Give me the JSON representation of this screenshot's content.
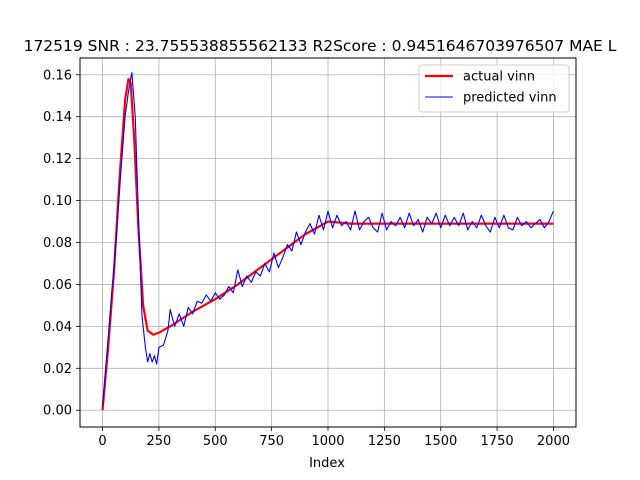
{
  "chart_data": {
    "type": "line",
    "title": "172519  SNR : 23.755538855562133 R2Score : 0.9451646703976507 MAE L",
    "xlabel": "Index",
    "ylabel": "",
    "xlim": [
      -100,
      2100
    ],
    "ylim": [
      -0.008,
      0.168
    ],
    "xticks": [
      0,
      250,
      500,
      750,
      1000,
      1250,
      1500,
      1750,
      2000
    ],
    "yticks": [
      0.0,
      0.02,
      0.04,
      0.06,
      0.08,
      0.1,
      0.12,
      0.14,
      0.16
    ],
    "ytick_labels": [
      "0.00",
      "0.02",
      "0.04",
      "0.06",
      "0.08",
      "0.10",
      "0.12",
      "0.14",
      "0.16"
    ],
    "grid": true,
    "legend_position": "top-right",
    "series": [
      {
        "name": "actual vinn",
        "color": "#ff0000",
        "x": [
          0,
          25,
          50,
          75,
          100,
          115,
          125,
          140,
          160,
          180,
          200,
          225,
          250,
          300,
          400,
          500,
          600,
          700,
          800,
          900,
          1000,
          1100,
          1200,
          1300,
          1400,
          1500,
          1600,
          1700,
          1800,
          1900,
          2000
        ],
        "y": [
          0.0,
          0.03,
          0.065,
          0.11,
          0.148,
          0.158,
          0.156,
          0.13,
          0.085,
          0.05,
          0.038,
          0.036,
          0.037,
          0.04,
          0.047,
          0.053,
          0.06,
          0.068,
          0.076,
          0.084,
          0.09,
          0.089,
          0.089,
          0.089,
          0.089,
          0.089,
          0.089,
          0.089,
          0.089,
          0.089,
          0.089
        ]
      },
      {
        "name": "predicted vinn",
        "color": "#0000ff",
        "x": [
          0,
          20,
          40,
          60,
          80,
          100,
          115,
          130,
          145,
          160,
          175,
          190,
          200,
          210,
          220,
          230,
          240,
          250,
          270,
          290,
          300,
          320,
          340,
          360,
          380,
          400,
          420,
          440,
          460,
          480,
          500,
          520,
          540,
          560,
          580,
          600,
          620,
          640,
          660,
          680,
          700,
          720,
          740,
          760,
          780,
          800,
          820,
          840,
          860,
          880,
          900,
          920,
          940,
          960,
          980,
          1000,
          1020,
          1040,
          1060,
          1080,
          1100,
          1120,
          1140,
          1160,
          1180,
          1200,
          1220,
          1240,
          1260,
          1280,
          1300,
          1320,
          1340,
          1360,
          1380,
          1400,
          1420,
          1440,
          1460,
          1480,
          1500,
          1520,
          1540,
          1560,
          1580,
          1600,
          1620,
          1640,
          1660,
          1680,
          1700,
          1720,
          1740,
          1760,
          1780,
          1800,
          1820,
          1840,
          1860,
          1880,
          1900,
          1920,
          1940,
          1960,
          1980,
          2000
        ],
        "y": [
          0.002,
          0.028,
          0.055,
          0.08,
          0.112,
          0.14,
          0.152,
          0.161,
          0.14,
          0.09,
          0.045,
          0.03,
          0.023,
          0.027,
          0.023,
          0.026,
          0.022,
          0.03,
          0.031,
          0.038,
          0.048,
          0.04,
          0.046,
          0.04,
          0.049,
          0.046,
          0.052,
          0.051,
          0.055,
          0.052,
          0.056,
          0.053,
          0.055,
          0.059,
          0.056,
          0.067,
          0.059,
          0.064,
          0.061,
          0.066,
          0.064,
          0.07,
          0.066,
          0.075,
          0.068,
          0.073,
          0.079,
          0.076,
          0.085,
          0.079,
          0.085,
          0.089,
          0.084,
          0.093,
          0.086,
          0.095,
          0.087,
          0.093,
          0.088,
          0.09,
          0.086,
          0.095,
          0.086,
          0.09,
          0.092,
          0.087,
          0.085,
          0.094,
          0.086,
          0.09,
          0.088,
          0.092,
          0.087,
          0.094,
          0.088,
          0.091,
          0.085,
          0.092,
          0.089,
          0.094,
          0.087,
          0.093,
          0.088,
          0.092,
          0.088,
          0.094,
          0.086,
          0.09,
          0.087,
          0.093,
          0.088,
          0.085,
          0.092,
          0.087,
          0.093,
          0.087,
          0.086,
          0.092,
          0.088,
          0.09,
          0.087,
          0.089,
          0.091,
          0.087,
          0.09,
          0.095
        ]
      }
    ]
  }
}
